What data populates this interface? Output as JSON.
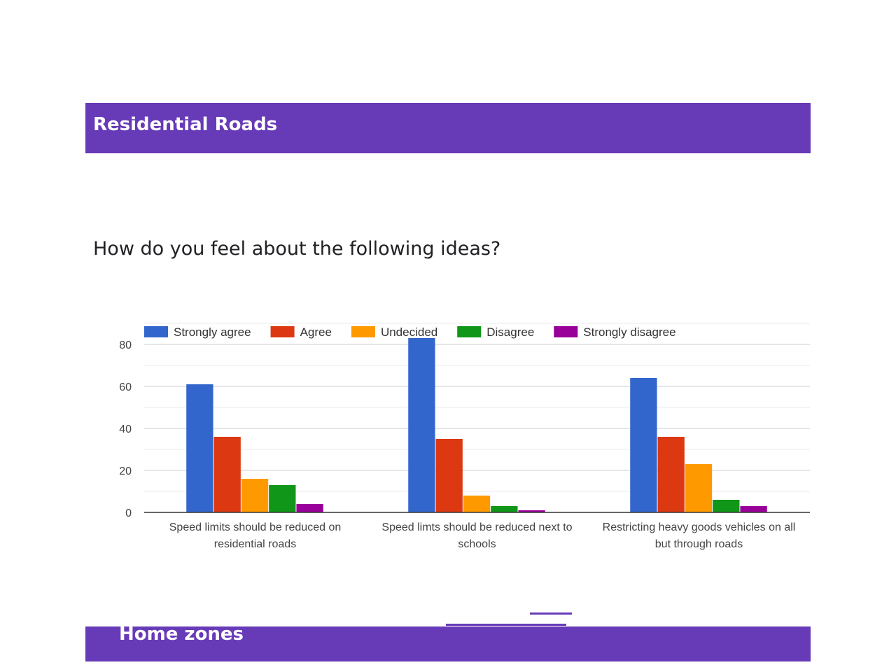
{
  "sections": {
    "top_header": "Residential Roads",
    "bottom_header": "Home zones"
  },
  "question": "How do you feel about the following ideas?",
  "colors": {
    "header_bg": "#673ab7",
    "series": [
      "#3366cc",
      "#dc3912",
      "#ff9900",
      "#109618",
      "#990099"
    ]
  },
  "chart_data": {
    "type": "bar",
    "title": "",
    "xlabel": "",
    "ylabel": "",
    "ylim": [
      0,
      90
    ],
    "yticks": [
      0,
      20,
      40,
      60,
      80
    ],
    "grid": true,
    "legend_position": "top",
    "categories": [
      [
        "Speed limits should be reduced on",
        "residential roads"
      ],
      [
        "Speed limts should be reduced next to",
        "schools"
      ],
      [
        "Restricting heavy goods vehicles on all",
        "but through roads"
      ]
    ],
    "series": [
      {
        "name": "Strongly agree",
        "values": [
          61,
          83,
          64
        ]
      },
      {
        "name": "Agree",
        "values": [
          36,
          35,
          36
        ]
      },
      {
        "name": "Undecided",
        "values": [
          16,
          8,
          23
        ]
      },
      {
        "name": "Disagree",
        "values": [
          13,
          3,
          6
        ]
      },
      {
        "name": "Strongly disagree",
        "values": [
          4,
          1,
          3
        ]
      }
    ]
  }
}
